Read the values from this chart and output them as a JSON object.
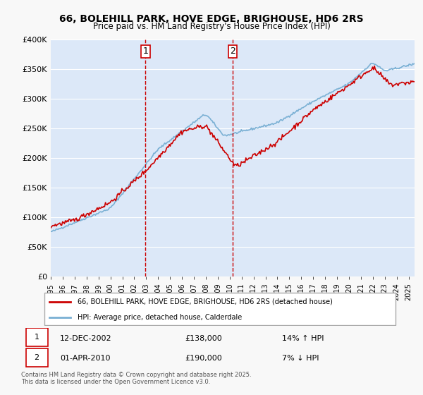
{
  "title": "66, BOLEHILL PARK, HOVE EDGE, BRIGHOUSE, HD6 2RS",
  "subtitle": "Price paid vs. HM Land Registry's House Price Index (HPI)",
  "legend_line1": "66, BOLEHILL PARK, HOVE EDGE, BRIGHOUSE, HD6 2RS (detached house)",
  "legend_line2": "HPI: Average price, detached house, Calderdale",
  "marker1_label": "1",
  "marker1_date": "12-DEC-2002",
  "marker1_price": "£138,000",
  "marker1_hpi": "14% ↑ HPI",
  "marker2_label": "2",
  "marker2_date": "01-APR-2010",
  "marker2_price": "£190,000",
  "marker2_hpi": "7% ↓ HPI",
  "footer": "Contains HM Land Registry data © Crown copyright and database right 2025.\nThis data is licensed under the Open Government Licence v3.0.",
  "ylim": [
    0,
    400000
  ],
  "yticks": [
    0,
    50000,
    100000,
    150000,
    200000,
    250000,
    300000,
    350000,
    400000
  ],
  "background_color": "#f0f4ff",
  "plot_bg": "#dce8f8",
  "red_color": "#cc0000",
  "blue_color": "#7ab0d4",
  "vline_color": "#cc0000",
  "marker1_x": 2002.95,
  "marker2_x": 2010.25,
  "xstart": 1995,
  "xend": 2025.5
}
